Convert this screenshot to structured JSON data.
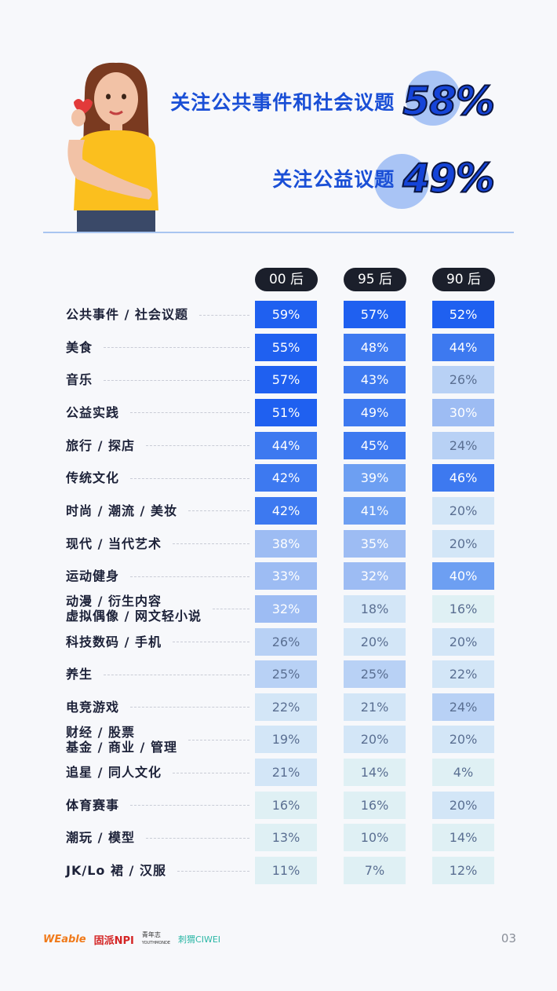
{
  "hero": {
    "stat1": {
      "label": "关注公共事件和社会议题",
      "value": "58%"
    },
    "stat2": {
      "label": "关注公益议题",
      "value": "49%"
    }
  },
  "chart_data": {
    "type": "table",
    "columns": [
      "00 后",
      "95 后",
      "90 后"
    ],
    "rows": [
      {
        "label": [
          "公共事件 / 社会议题"
        ],
        "values": [
          "59%",
          "57%",
          "52%"
        ]
      },
      {
        "label": [
          "美食"
        ],
        "values": [
          "55%",
          "48%",
          "44%"
        ]
      },
      {
        "label": [
          "音乐"
        ],
        "values": [
          "57%",
          "43%",
          "26%"
        ]
      },
      {
        "label": [
          "公益实践"
        ],
        "values": [
          "51%",
          "49%",
          "30%"
        ]
      },
      {
        "label": [
          "旅行 / 探店"
        ],
        "values": [
          "44%",
          "45%",
          "24%"
        ]
      },
      {
        "label": [
          "传统文化"
        ],
        "values": [
          "42%",
          "39%",
          "46%"
        ]
      },
      {
        "label": [
          "时尚 / 潮流 / 美妆"
        ],
        "values": [
          "42%",
          "41%",
          "20%"
        ]
      },
      {
        "label": [
          "现代 / 当代艺术"
        ],
        "values": [
          "38%",
          "35%",
          "20%"
        ]
      },
      {
        "label": [
          "运动健身"
        ],
        "values": [
          "33%",
          "32%",
          "40%"
        ]
      },
      {
        "label": [
          "动漫 / 衍生内容",
          "虚拟偶像 / 网文轻小说"
        ],
        "values": [
          "32%",
          "18%",
          "16%"
        ]
      },
      {
        "label": [
          "科技数码 / 手机"
        ],
        "values": [
          "26%",
          "20%",
          "20%"
        ]
      },
      {
        "label": [
          "养生"
        ],
        "values": [
          "25%",
          "25%",
          "22%"
        ]
      },
      {
        "label": [
          "电竞游戏"
        ],
        "values": [
          "22%",
          "21%",
          "24%"
        ]
      },
      {
        "label": [
          "财经 / 股票",
          "基金 / 商业 / 管理"
        ],
        "values": [
          "19%",
          "20%",
          "20%"
        ]
      },
      {
        "label": [
          "追星 / 同人文化"
        ],
        "values": [
          "21%",
          "14%",
          "4%"
        ]
      },
      {
        "label": [
          "体育赛事"
        ],
        "values": [
          "16%",
          "16%",
          "20%"
        ]
      },
      {
        "label": [
          "潮玩 / 模型"
        ],
        "values": [
          "13%",
          "10%",
          "14%"
        ]
      },
      {
        "label": [
          "JK/Lo 裙 / 汉服"
        ],
        "values": [
          "11%",
          "7%",
          "12%"
        ]
      }
    ]
  },
  "colors": {
    "scale": [
      "#dff0f4",
      "#d3e6f7",
      "#b8d1f5",
      "#9dbcf3",
      "#6d9ff2",
      "#3d79f0",
      "#1f60f0"
    ],
    "text_dark": "#1c2138"
  },
  "footer": {
    "logo1": "WEable",
    "logo2": "固派NPI",
    "logo3": "青年志",
    "logo3_sub": "YOUTHMONDE",
    "logo4": "刺猬CIWEI",
    "page": "03"
  }
}
